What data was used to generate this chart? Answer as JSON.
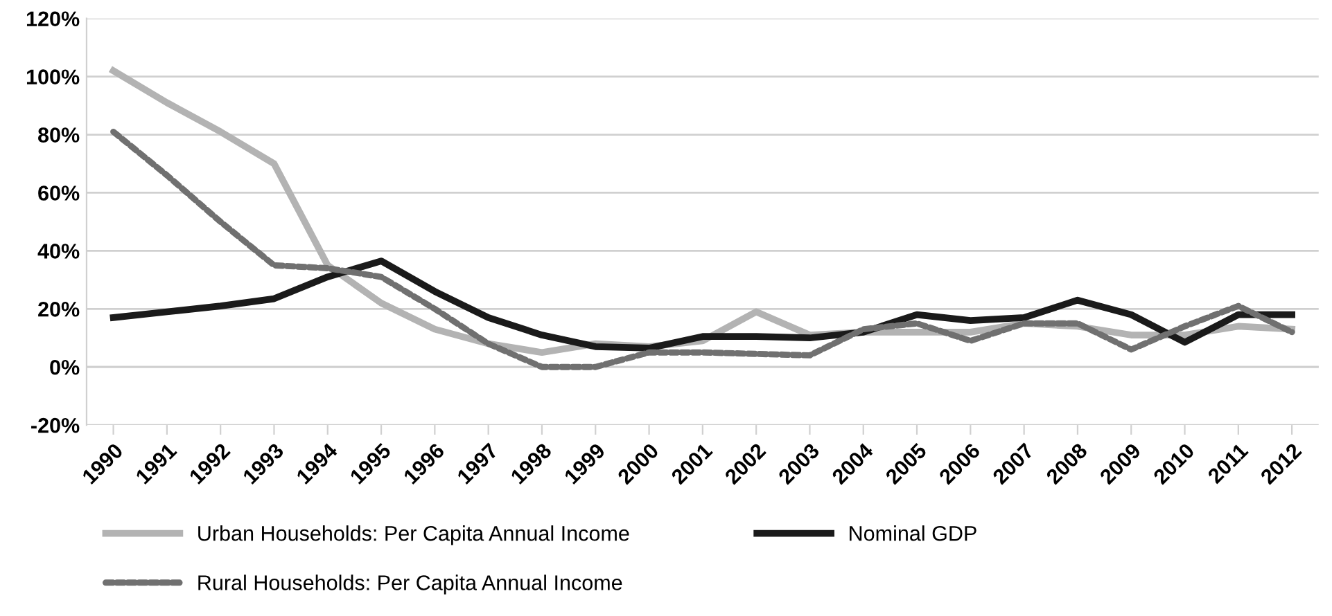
{
  "chart_data": {
    "type": "line",
    "categories": [
      "1990",
      "1991",
      "1992",
      "1993",
      "1994",
      "1995",
      "1996",
      "1997",
      "1998",
      "1999",
      "2000",
      "2001",
      "2002",
      "2003",
      "2004",
      "2005",
      "2006",
      "2007",
      "2008",
      "2009",
      "2010",
      "2011",
      "2012"
    ],
    "series": [
      {
        "name": "Urban Households: Per Capita Annual Income",
        "color": "#b3b3b3",
        "line_style": "solid",
        "values": [
          102,
          91,
          81,
          70,
          35,
          22,
          13,
          8,
          5,
          8,
          7,
          9,
          19,
          11,
          12,
          12,
          12,
          15,
          14,
          11,
          11,
          14,
          13
        ]
      },
      {
        "name": "Nominal GDP",
        "color": "#1a1a1a",
        "line_style": "solid",
        "values": [
          17,
          19,
          21,
          23.5,
          31,
          36.5,
          26,
          17,
          11,
          7,
          6.5,
          10.5,
          10.5,
          10,
          12,
          18,
          16,
          17,
          23,
          18,
          8.5,
          18,
          18
        ]
      },
      {
        "name": "Rural Households: Per Capita Annual Income",
        "color": "#707070",
        "line_style": "dashed",
        "values": [
          81,
          66,
          50,
          35,
          34,
          31,
          20,
          8,
          0,
          0,
          5,
          5,
          4.5,
          4,
          13,
          15,
          9,
          15,
          15,
          6,
          14,
          21,
          12
        ]
      }
    ],
    "ylim": [
      -20,
      120
    ],
    "yticks": [
      {
        "value": -20,
        "label": "-20%"
      },
      {
        "value": 0,
        "label": "0%"
      },
      {
        "value": 20,
        "label": "20%"
      },
      {
        "value": 40,
        "label": "40%"
      },
      {
        "value": 60,
        "label": "60%"
      },
      {
        "value": 80,
        "label": "80%"
      },
      {
        "value": 100,
        "label": "100%"
      },
      {
        "value": 120,
        "label": "120%"
      }
    ],
    "grid": "y",
    "legend": "bottom",
    "marker": "none"
  }
}
